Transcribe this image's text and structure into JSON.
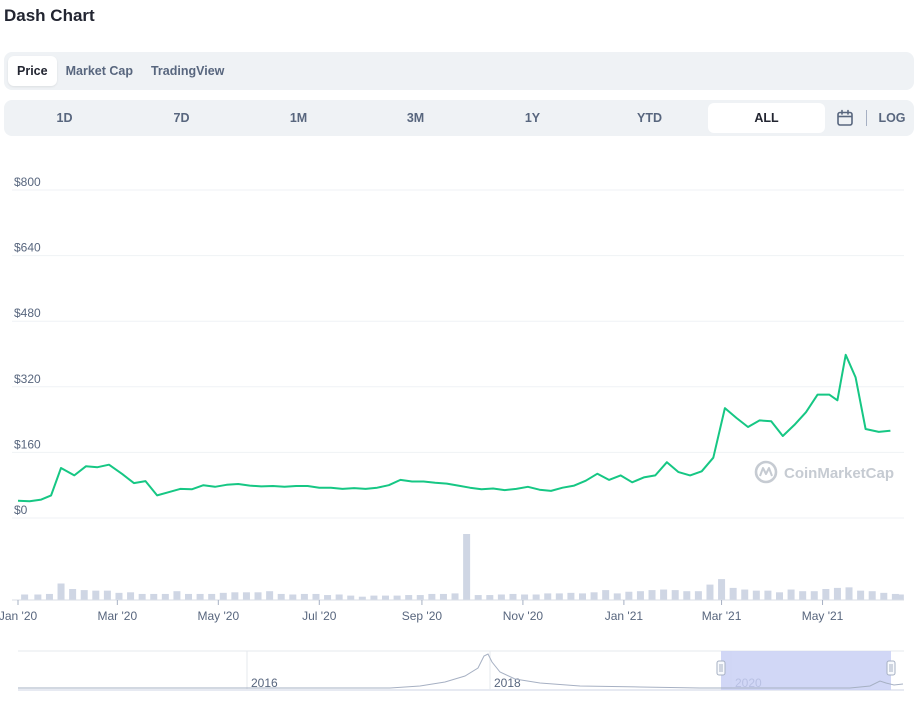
{
  "title": "Dash Chart",
  "tabs": [
    {
      "label": "Price",
      "active": true
    },
    {
      "label": "Market Cap",
      "active": false
    },
    {
      "label": "TradingView",
      "active": false
    }
  ],
  "ranges": [
    {
      "label": "1D",
      "active": false
    },
    {
      "label": "7D",
      "active": false
    },
    {
      "label": "1M",
      "active": false
    },
    {
      "label": "3M",
      "active": false
    },
    {
      "label": "1Y",
      "active": false
    },
    {
      "label": "YTD",
      "active": false
    },
    {
      "label": "ALL",
      "active": true
    }
  ],
  "calendar_icon": "calendar-icon",
  "log_label": "LOG",
  "watermark": "CoinMarketCap",
  "colors": {
    "line": "#16c784",
    "volume": "#cfd6e4",
    "navigator_fill": "#c9d0f5",
    "grid": "#eff2f5"
  },
  "chart_data": {
    "type": "line",
    "ylim": [
      0,
      800
    ],
    "yticks": [
      "$0",
      "$160",
      "$320",
      "$480",
      "$640",
      "$800"
    ],
    "xticks": [
      "Jan '20",
      "Mar '20",
      "May '20",
      "Jul '20",
      "Sep '20",
      "Nov '20",
      "Jan '21",
      "Mar '21",
      "May '21"
    ],
    "x_start": "2020-01-01",
    "x_end": "2021-06-18",
    "grid": true,
    "series": [
      {
        "values": [
          [
            "2020-01-01",
            42
          ],
          [
            "2020-01-08",
            41
          ],
          [
            "2020-01-15",
            45
          ],
          [
            "2020-01-21",
            55
          ],
          [
            "2020-01-27",
            122
          ],
          [
            "2020-02-04",
            104
          ],
          [
            "2020-02-11",
            126
          ],
          [
            "2020-02-18",
            124
          ],
          [
            "2020-02-25",
            130
          ],
          [
            "2020-03-04",
            107
          ],
          [
            "2020-03-11",
            85
          ],
          [
            "2020-03-18",
            90
          ],
          [
            "2020-03-25",
            55
          ],
          [
            "2020-04-01",
            63
          ],
          [
            "2020-04-08",
            71
          ],
          [
            "2020-04-15",
            70
          ],
          [
            "2020-04-22",
            80
          ],
          [
            "2020-04-29",
            76
          ],
          [
            "2020-05-06",
            81
          ],
          [
            "2020-05-13",
            83
          ],
          [
            "2020-05-20",
            79
          ],
          [
            "2020-05-27",
            77
          ],
          [
            "2020-06-03",
            78
          ],
          [
            "2020-06-10",
            76
          ],
          [
            "2020-06-17",
            78
          ],
          [
            "2020-06-24",
            78
          ],
          [
            "2020-07-01",
            74
          ],
          [
            "2020-07-08",
            74
          ],
          [
            "2020-07-15",
            71
          ],
          [
            "2020-07-22",
            73
          ],
          [
            "2020-07-29",
            71
          ],
          [
            "2020-08-05",
            74
          ],
          [
            "2020-08-12",
            80
          ],
          [
            "2020-08-19",
            93
          ],
          [
            "2020-08-26",
            89
          ],
          [
            "2020-09-02",
            89
          ],
          [
            "2020-09-09",
            86
          ],
          [
            "2020-09-16",
            84
          ],
          [
            "2020-09-23",
            79
          ],
          [
            "2020-09-30",
            74
          ],
          [
            "2020-10-07",
            70
          ],
          [
            "2020-10-14",
            72
          ],
          [
            "2020-10-21",
            68
          ],
          [
            "2020-10-28",
            71
          ],
          [
            "2020-11-04",
            76
          ],
          [
            "2020-11-11",
            69
          ],
          [
            "2020-11-18",
            66
          ],
          [
            "2020-11-25",
            74
          ],
          [
            "2020-12-02",
            79
          ],
          [
            "2020-12-09",
            91
          ],
          [
            "2020-12-16",
            108
          ],
          [
            "2020-12-23",
            93
          ],
          [
            "2020-12-30",
            104
          ],
          [
            "2021-01-06",
            87
          ],
          [
            "2021-01-13",
            99
          ],
          [
            "2021-01-20",
            104
          ],
          [
            "2021-01-27",
            136
          ],
          [
            "2021-02-03",
            112
          ],
          [
            "2021-02-10",
            104
          ],
          [
            "2021-02-17",
            114
          ],
          [
            "2021-02-24",
            147
          ],
          [
            "2021-03-03",
            268
          ],
          [
            "2021-03-10",
            244
          ],
          [
            "2021-03-17",
            222
          ],
          [
            "2021-03-24",
            238
          ],
          [
            "2021-03-31",
            236
          ],
          [
            "2021-04-07",
            200
          ],
          [
            "2021-04-14",
            227
          ],
          [
            "2021-04-21",
            258
          ],
          [
            "2021-04-28",
            301
          ],
          [
            "2021-05-05",
            301
          ],
          [
            "2021-05-10",
            287
          ],
          [
            "2021-05-15",
            398
          ],
          [
            "2021-05-21",
            343
          ],
          [
            "2021-05-27",
            217
          ],
          [
            "2021-06-04",
            210
          ],
          [
            "2021-06-11",
            213
          ]
        ]
      }
    ],
    "volume": [
      [
        "2020-01-05",
        1
      ],
      [
        "2020-01-13",
        1
      ],
      [
        "2020-01-20",
        1.1
      ],
      [
        "2020-01-27",
        3
      ],
      [
        "2020-02-03",
        2
      ],
      [
        "2020-02-10",
        1.8
      ],
      [
        "2020-02-17",
        1.7
      ],
      [
        "2020-02-24",
        1.7
      ],
      [
        "2020-03-02",
        1.3
      ],
      [
        "2020-03-09",
        1.4
      ],
      [
        "2020-03-16",
        1.1
      ],
      [
        "2020-03-23",
        1.1
      ],
      [
        "2020-03-30",
        1.1
      ],
      [
        "2020-04-06",
        1.6
      ],
      [
        "2020-04-13",
        1.1
      ],
      [
        "2020-04-20",
        1.1
      ],
      [
        "2020-04-27",
        1.1
      ],
      [
        "2020-05-04",
        1.3
      ],
      [
        "2020-05-11",
        1.4
      ],
      [
        "2020-05-18",
        1.4
      ],
      [
        "2020-05-25",
        1.4
      ],
      [
        "2020-06-01",
        1.6
      ],
      [
        "2020-06-08",
        1.1
      ],
      [
        "2020-06-15",
        1
      ],
      [
        "2020-06-22",
        1.1
      ],
      [
        "2020-06-29",
        1.1
      ],
      [
        "2020-07-06",
        0.9
      ],
      [
        "2020-07-13",
        1
      ],
      [
        "2020-07-20",
        0.8
      ],
      [
        "2020-07-27",
        0.6
      ],
      [
        "2020-08-03",
        0.8
      ],
      [
        "2020-08-10",
        0.8
      ],
      [
        "2020-08-17",
        0.8
      ],
      [
        "2020-08-24",
        0.9
      ],
      [
        "2020-08-31",
        0.9
      ],
      [
        "2020-09-07",
        1.1
      ],
      [
        "2020-09-14",
        1.1
      ],
      [
        "2020-09-21",
        1.2
      ],
      [
        "2020-09-28",
        12
      ],
      [
        "2020-10-05",
        0.9
      ],
      [
        "2020-10-12",
        0.9
      ],
      [
        "2020-10-19",
        1
      ],
      [
        "2020-10-26",
        1.1
      ],
      [
        "2020-11-02",
        1
      ],
      [
        "2020-11-09",
        1
      ],
      [
        "2020-11-16",
        1.2
      ],
      [
        "2020-11-23",
        1.2
      ],
      [
        "2020-11-30",
        1.3
      ],
      [
        "2020-12-07",
        1.2
      ],
      [
        "2020-12-14",
        1.4
      ],
      [
        "2020-12-21",
        1.8
      ],
      [
        "2020-12-28",
        1.2
      ],
      [
        "2021-01-04",
        1.5
      ],
      [
        "2021-01-11",
        1.6
      ],
      [
        "2021-01-18",
        1.8
      ],
      [
        "2021-01-25",
        1.9
      ],
      [
        "2021-02-01",
        1.8
      ],
      [
        "2021-02-08",
        1.6
      ],
      [
        "2021-02-15",
        1.6
      ],
      [
        "2021-02-22",
        2.8
      ],
      [
        "2021-03-01",
        3.8
      ],
      [
        "2021-03-08",
        2.2
      ],
      [
        "2021-03-15",
        1.9
      ],
      [
        "2021-03-22",
        1.7
      ],
      [
        "2021-03-29",
        1.7
      ],
      [
        "2021-04-05",
        1.4
      ],
      [
        "2021-04-12",
        1.9
      ],
      [
        "2021-04-19",
        1.6
      ],
      [
        "2021-04-26",
        1.6
      ],
      [
        "2021-05-03",
        2
      ],
      [
        "2021-05-10",
        2.2
      ],
      [
        "2021-05-17",
        2.3
      ],
      [
        "2021-05-24",
        1.7
      ],
      [
        "2021-05-31",
        1.6
      ],
      [
        "2021-06-07",
        1.3
      ],
      [
        "2021-06-14",
        1.1
      ],
      [
        "2021-06-17",
        1
      ]
    ],
    "navigator": {
      "labels": [
        "2016",
        "2018",
        "2020"
      ],
      "selected_from": "2020-01-01",
      "selected_to": "2021-06-18"
    }
  }
}
